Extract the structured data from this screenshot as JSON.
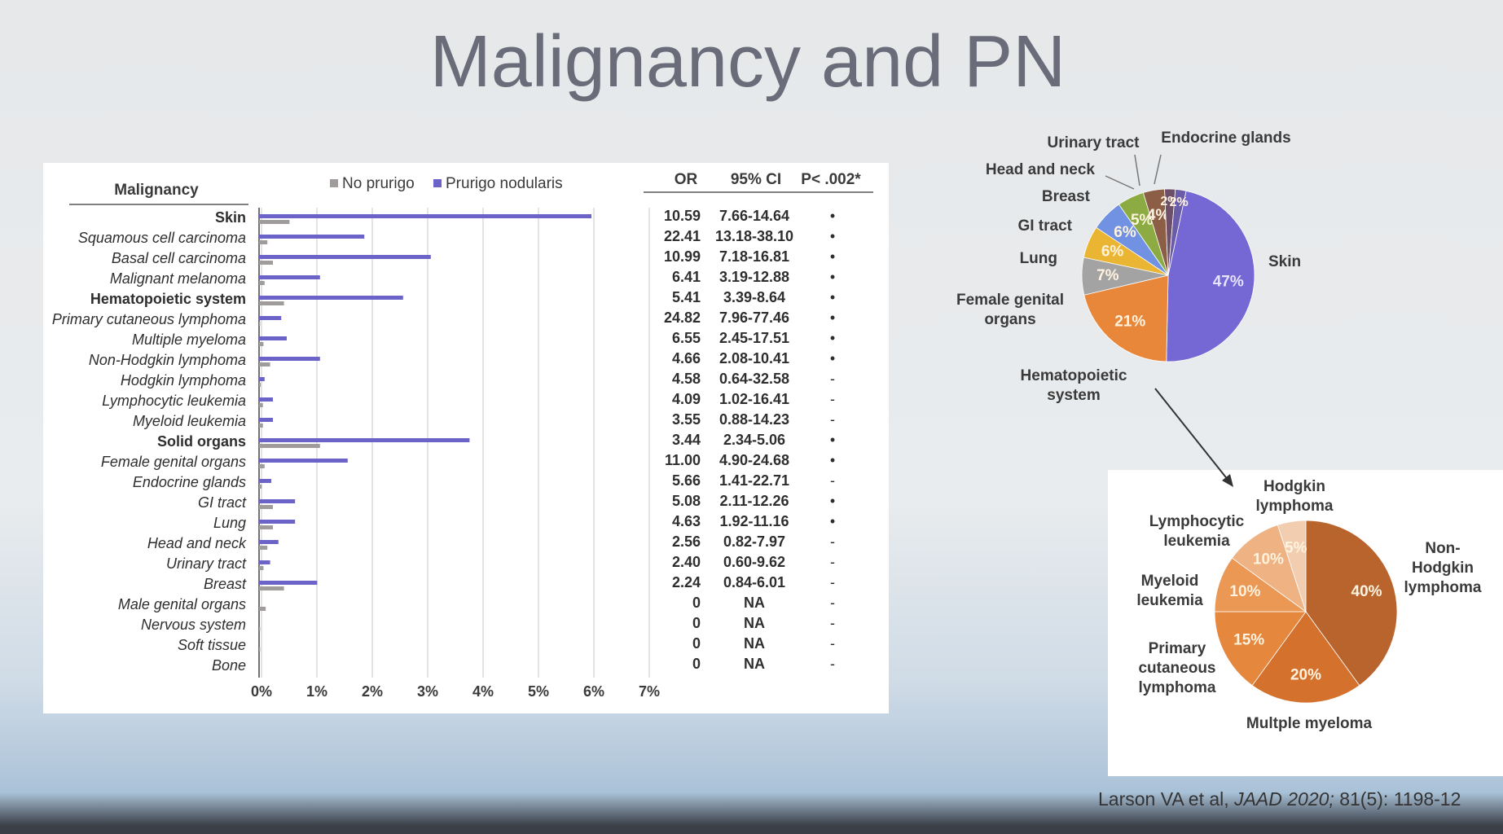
{
  "title": "Malignancy and PN",
  "citation": [
    "Larson VA et al, ",
    "JAAD 2020;",
    " 81(5): 1198-12"
  ],
  "table": {
    "header": [
      "OR",
      "95% CI",
      "P< .002*"
    ],
    "rows": [
      [
        "10.59",
        "7.66-14.64",
        "•"
      ],
      [
        "22.41",
        "13.18-38.10",
        "•"
      ],
      [
        "10.99",
        "7.18-16.81",
        "•"
      ],
      [
        "6.41",
        "3.19-12.88",
        "•"
      ],
      [
        "5.41",
        "3.39-8.64",
        "•"
      ],
      [
        "24.82",
        "7.96-77.46",
        "•"
      ],
      [
        "6.55",
        "2.45-17.51",
        "•"
      ],
      [
        "4.66",
        "2.08-10.41",
        "•"
      ],
      [
        "4.58",
        "0.64-32.58",
        "-"
      ],
      [
        "4.09",
        "1.02-16.41",
        "-"
      ],
      [
        "3.55",
        "0.88-14.23",
        "-"
      ],
      [
        "3.44",
        "2.34-5.06",
        "•"
      ],
      [
        "11.00",
        "4.90-24.68",
        "•"
      ],
      [
        "5.66",
        "1.41-22.71",
        "-"
      ],
      [
        "5.08",
        "2.11-12.26",
        "•"
      ],
      [
        "4.63",
        "1.92-11.16",
        "•"
      ],
      [
        "2.56",
        "0.82-7.97",
        "-"
      ],
      [
        "2.40",
        "0.60-9.62",
        "-"
      ],
      [
        "2.24",
        "0.84-6.01",
        "-"
      ],
      [
        "0",
        "NA",
        "-"
      ],
      [
        "0",
        "NA",
        "-"
      ],
      [
        "0",
        "NA",
        "-"
      ],
      [
        "0",
        "NA",
        "-"
      ]
    ]
  },
  "chart_data": [
    {
      "type": "hbar",
      "category_header": "Malignancy",
      "categories": [
        "Skin",
        "Squamous cell carcinoma",
        "Basal cell carcinoma",
        "Malignant melanoma",
        "Hematopoietic system",
        "Primary cutaneous lymphoma",
        "Multiple myeloma",
        "Non-Hodgkin lymphoma",
        "Hodgkin lymphoma",
        "Lymphocytic leukemia",
        "Myeloid leukemia",
        "Solid organs",
        "Female genital organs",
        "Endocrine glands",
        "GI tract",
        "Lung",
        "Head and neck",
        "Urinary tract",
        "Breast",
        "Male genital organs",
        "Nervous system",
        "Soft tissue",
        "Bone"
      ],
      "bold_categories": [
        0,
        4,
        11
      ],
      "series": [
        {
          "name": "No prurigo",
          "color": "#a09c9c",
          "values": [
            0.55,
            0.15,
            0.25,
            0.1,
            0.45,
            0.02,
            0.08,
            0.2,
            0.03,
            0.07,
            0.07,
            1.1,
            0.1,
            0.05,
            0.25,
            0.25,
            0.15,
            0.08,
            0.45,
            0.12,
            0.02,
            0.02,
            0
          ]
        },
        {
          "name": "Prurigo nodularis",
          "color": "#6b63c8",
          "values": [
            6.0,
            1.9,
            3.1,
            1.1,
            2.6,
            0.4,
            0.5,
            1.1,
            0.1,
            0.25,
            0.25,
            3.8,
            1.6,
            0.22,
            0.65,
            0.65,
            0.35,
            0.2,
            1.05,
            0,
            0,
            0,
            0
          ]
        }
      ],
      "xlim": [
        0,
        7
      ],
      "xticks": [
        {
          "value": 0,
          "label": "0%"
        },
        {
          "value": 1,
          "label": "1%"
        },
        {
          "value": 2,
          "label": "2%"
        },
        {
          "value": 3,
          "label": "3%"
        },
        {
          "value": 4,
          "label": "4%"
        },
        {
          "value": 5,
          "label": "5%"
        },
        {
          "value": 6,
          "label": "6%"
        },
        {
          "value": 7,
          "label": "7%"
        }
      ],
      "grid": true,
      "legend": "top"
    },
    {
      "type": "pie",
      "categories": [
        "Skin",
        "Hematopoietic system",
        "Female genital organs",
        "Lung",
        "GI tract",
        "Breast",
        "Head and neck",
        "Urinary tract",
        "Endocrine glands"
      ],
      "values": [
        47,
        21,
        7,
        6,
        6,
        5,
        4,
        2,
        2
      ],
      "value_labels": [
        "47%",
        "21%",
        "7%",
        "6%",
        "6%",
        "5%",
        "4%",
        "2%",
        "2%"
      ],
      "colors": [
        "#7568d4",
        "#e8873a",
        "#a3a3a3",
        "#eab532",
        "#7192e2",
        "#8cab42",
        "#8b5e45",
        "#6e4f6a",
        "#6a5ca8"
      ]
    },
    {
      "type": "pie",
      "categories": [
        "Non-Hodgkin lymphoma",
        "Multple myeloma",
        "Primary cutaneous lymphoma",
        "Myeloid leukemia",
        "Lymphocytic leukemia",
        "Hodgkin lymphoma"
      ],
      "values": [
        40,
        20,
        15,
        10,
        10,
        5
      ],
      "value_labels": [
        "40%",
        "20%",
        "15%",
        "10%",
        "10%",
        "5%"
      ],
      "colors": [
        "#b9642c",
        "#d3712d",
        "#e6873e",
        "#ea9853",
        "#eeb283",
        "#f3cdb0"
      ]
    }
  ]
}
